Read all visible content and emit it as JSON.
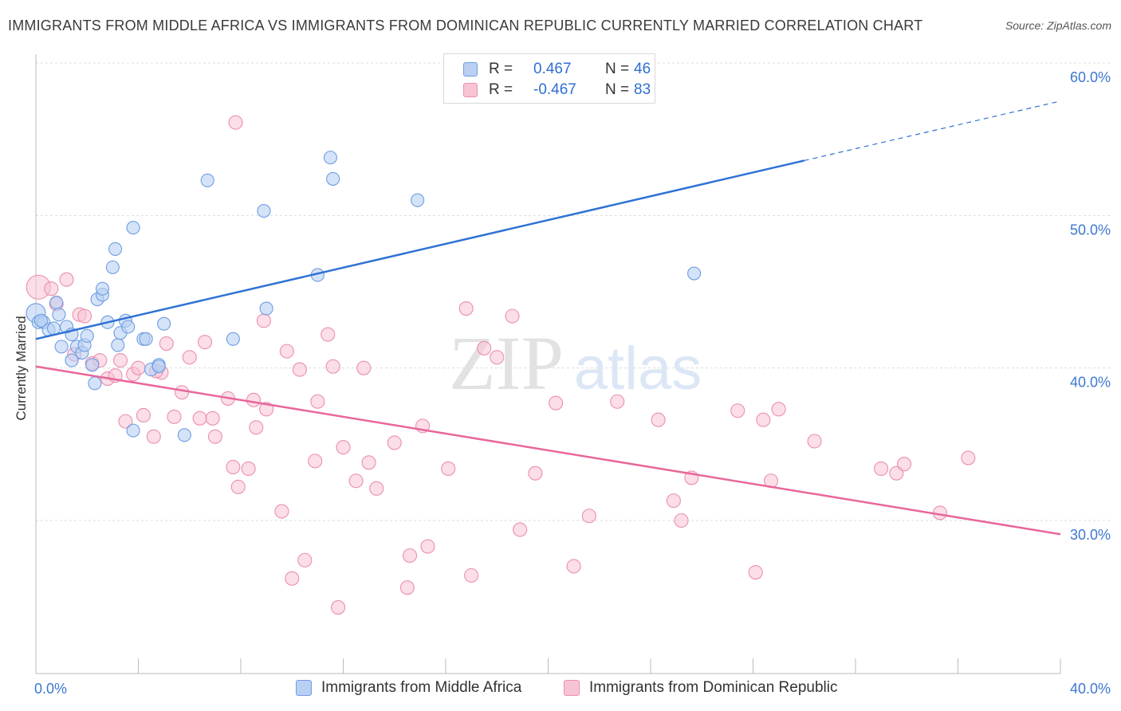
{
  "title": "IMMIGRANTS FROM MIDDLE AFRICA VS IMMIGRANTS FROM DOMINICAN REPUBLIC CURRENTLY MARRIED CORRELATION CHART",
  "source": "Source: ZipAtlas.com",
  "watermark": {
    "zip": "ZIP",
    "atlas": "atlas"
  },
  "legend": {
    "rows": [
      {
        "r_label": "R =",
        "r_value": "0.467",
        "n_label": "N =",
        "n_value": "46"
      },
      {
        "r_label": "R =",
        "r_value": "-0.467",
        "n_label": "N =",
        "n_value": "83"
      }
    ]
  },
  "colors": {
    "blue_fill": "#b9d0f3",
    "blue_stroke": "#6d9de3",
    "blue_line": "#2f72d4",
    "pink_fill": "#f8c3d3",
    "pink_stroke": "#eb8fae",
    "pink_line": "#e8679a",
    "axis_label": "#3d78d0",
    "grid": "#dcdcdc"
  },
  "chart_data": {
    "type": "scatter",
    "title": "IMMIGRANTS FROM MIDDLE AFRICA VS IMMIGRANTS FROM DOMINICAN REPUBLIC CURRENTLY MARRIED CORRELATION CHART",
    "xlabel": "",
    "ylabel": "Currently Married",
    "xlim": [
      0,
      40
    ],
    "ylim": [
      21,
      62
    ],
    "x_ticks": [
      0,
      40
    ],
    "x_tick_labels": [
      "0.0%",
      "40.0%"
    ],
    "y_ticks": [
      30,
      40,
      50,
      60
    ],
    "y_tick_labels": [
      "30.0%",
      "40.0%",
      "50.0%",
      "60.0%"
    ],
    "grid": true,
    "legend_position": "top-center and bottom",
    "series": [
      {
        "name": "Immigrants from Middle Africa",
        "color": "#6d9de3",
        "r": 0.467,
        "n": 46,
        "trend": {
          "x0": 0,
          "y0": 41.9,
          "x1": 30,
          "y1": 53.6,
          "dashed_to_x": 40,
          "dashed_to_y": 57.5
        },
        "points": [
          [
            0.0,
            43.6
          ],
          [
            0.1,
            43.0
          ],
          [
            0.3,
            43.0
          ],
          [
            0.5,
            42.5
          ],
          [
            0.7,
            42.6
          ],
          [
            0.8,
            44.3
          ],
          [
            0.9,
            43.5
          ],
          [
            1.0,
            41.4
          ],
          [
            1.2,
            42.7
          ],
          [
            1.4,
            42.2
          ],
          [
            1.4,
            40.5
          ],
          [
            1.6,
            41.4
          ],
          [
            1.8,
            41.0
          ],
          [
            1.9,
            41.5
          ],
          [
            2.0,
            42.1
          ],
          [
            2.2,
            40.2
          ],
          [
            2.3,
            39.0
          ],
          [
            2.4,
            44.5
          ],
          [
            2.6,
            44.8
          ],
          [
            2.6,
            45.2
          ],
          [
            2.8,
            43.0
          ],
          [
            3.0,
            46.6
          ],
          [
            3.1,
            47.8
          ],
          [
            3.2,
            41.5
          ],
          [
            3.3,
            42.3
          ],
          [
            3.5,
            43.1
          ],
          [
            3.6,
            42.7
          ],
          [
            3.8,
            35.9
          ],
          [
            3.8,
            49.2
          ],
          [
            4.2,
            41.9
          ],
          [
            4.3,
            41.9
          ],
          [
            4.5,
            39.9
          ],
          [
            4.8,
            40.2
          ],
          [
            4.8,
            40.1
          ],
          [
            5.0,
            42.9
          ],
          [
            5.8,
            35.6
          ],
          [
            6.7,
            52.3
          ],
          [
            7.7,
            41.9
          ],
          [
            8.9,
            50.3
          ],
          [
            9.0,
            43.9
          ],
          [
            11.0,
            46.1
          ],
          [
            11.5,
            53.8
          ],
          [
            11.6,
            52.4
          ],
          [
            14.9,
            51.0
          ],
          [
            25.7,
            46.2
          ],
          [
            0.2,
            43.1
          ]
        ]
      },
      {
        "name": "Immigrants from Dominican Republic",
        "color": "#eb8fae",
        "r": -0.467,
        "n": 83,
        "trend": {
          "x0": 0,
          "y0": 40.1,
          "x1": 40,
          "y1": 29.1
        },
        "points": [
          [
            0.1,
            45.3
          ],
          [
            0.6,
            45.2
          ],
          [
            0.8,
            44.2
          ],
          [
            1.2,
            45.8
          ],
          [
            1.5,
            40.9
          ],
          [
            1.7,
            43.5
          ],
          [
            1.9,
            43.4
          ],
          [
            2.2,
            40.3
          ],
          [
            2.5,
            40.5
          ],
          [
            2.8,
            39.3
          ],
          [
            3.1,
            39.5
          ],
          [
            3.3,
            40.5
          ],
          [
            3.5,
            36.5
          ],
          [
            3.8,
            39.6
          ],
          [
            4.0,
            40.0
          ],
          [
            4.2,
            36.9
          ],
          [
            4.6,
            35.5
          ],
          [
            4.9,
            39.7
          ],
          [
            5.1,
            41.6
          ],
          [
            5.4,
            36.8
          ],
          [
            5.7,
            38.4
          ],
          [
            6.0,
            40.7
          ],
          [
            6.4,
            36.7
          ],
          [
            6.6,
            41.7
          ],
          [
            6.9,
            36.7
          ],
          [
            7.0,
            35.5
          ],
          [
            7.5,
            38.0
          ],
          [
            7.7,
            33.5
          ],
          [
            7.8,
            56.1
          ],
          [
            7.9,
            32.2
          ],
          [
            8.3,
            33.4
          ],
          [
            8.5,
            37.9
          ],
          [
            8.6,
            36.1
          ],
          [
            8.9,
            43.1
          ],
          [
            9.0,
            37.3
          ],
          [
            9.6,
            30.6
          ],
          [
            9.8,
            41.1
          ],
          [
            10.0,
            26.2
          ],
          [
            10.3,
            39.9
          ],
          [
            10.5,
            27.4
          ],
          [
            10.9,
            33.9
          ],
          [
            11.0,
            37.8
          ],
          [
            11.4,
            42.2
          ],
          [
            11.6,
            40.1
          ],
          [
            11.8,
            24.3
          ],
          [
            12.0,
            34.8
          ],
          [
            12.5,
            32.6
          ],
          [
            12.8,
            40.0
          ],
          [
            13.0,
            33.8
          ],
          [
            13.3,
            32.1
          ],
          [
            14.0,
            35.1
          ],
          [
            14.5,
            25.6
          ],
          [
            14.6,
            27.7
          ],
          [
            15.1,
            36.2
          ],
          [
            15.3,
            28.3
          ],
          [
            16.1,
            33.4
          ],
          [
            16.8,
            43.9
          ],
          [
            17.0,
            26.4
          ],
          [
            17.5,
            41.3
          ],
          [
            18.0,
            40.7
          ],
          [
            18.6,
            43.4
          ],
          [
            18.9,
            29.4
          ],
          [
            19.5,
            33.1
          ],
          [
            20.3,
            37.7
          ],
          [
            21.0,
            27.0
          ],
          [
            21.6,
            30.3
          ],
          [
            22.7,
            37.8
          ],
          [
            24.3,
            36.6
          ],
          [
            24.9,
            31.3
          ],
          [
            25.2,
            30.0
          ],
          [
            25.6,
            32.8
          ],
          [
            27.4,
            37.2
          ],
          [
            28.1,
            26.6
          ],
          [
            28.4,
            36.6
          ],
          [
            28.7,
            32.6
          ],
          [
            29.0,
            37.3
          ],
          [
            30.4,
            35.2
          ],
          [
            33.0,
            33.4
          ],
          [
            33.6,
            33.1
          ],
          [
            33.9,
            33.7
          ],
          [
            35.3,
            30.5
          ],
          [
            36.4,
            34.1
          ],
          [
            4.7,
            39.8
          ]
        ]
      }
    ]
  }
}
